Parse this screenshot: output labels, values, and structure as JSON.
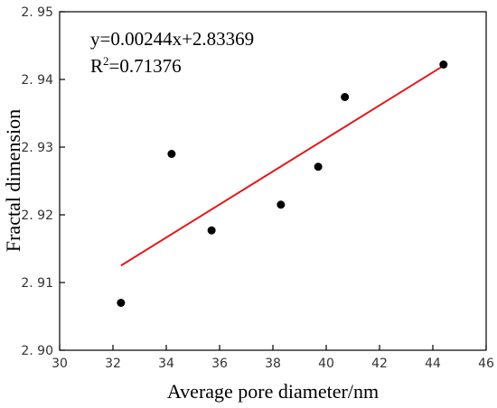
{
  "chart_data": {
    "type": "scatter",
    "xlabel": "Average pore diameter/nm",
    "ylabel": "Fractal dimension",
    "xlim": [
      30,
      46
    ],
    "ylim": [
      2.9,
      2.95
    ],
    "x_ticks": [
      30,
      32,
      34,
      36,
      38,
      40,
      42,
      44,
      46
    ],
    "x_tick_labels": [
      "30",
      "32",
      "34",
      "36",
      "38",
      "40",
      "42",
      "44",
      "46"
    ],
    "y_ticks": [
      2.9,
      2.91,
      2.92,
      2.93,
      2.94,
      2.95
    ],
    "y_tick_labels": [
      "2. 90",
      "2. 91",
      "2. 92",
      "2. 93",
      "2. 94",
      "2. 95"
    ],
    "grid": false,
    "points": [
      {
        "x": 32.3,
        "y": 2.907
      },
      {
        "x": 34.2,
        "y": 2.929
      },
      {
        "x": 35.7,
        "y": 2.9177
      },
      {
        "x": 38.3,
        "y": 2.9215
      },
      {
        "x": 39.7,
        "y": 2.9271
      },
      {
        "x": 40.7,
        "y": 2.9374
      },
      {
        "x": 44.4,
        "y": 2.9422
      }
    ],
    "fit": {
      "slope": 0.00244,
      "intercept": 2.83369,
      "x_range": [
        32.3,
        44.4
      ],
      "color": "#e31a1c"
    },
    "annotations": {
      "equation": "y=0.00244x+2.83369",
      "r2_prefix": "R",
      "r2_sup": "2",
      "r2_value": "=0.71376"
    },
    "marker_color": "#000000"
  }
}
